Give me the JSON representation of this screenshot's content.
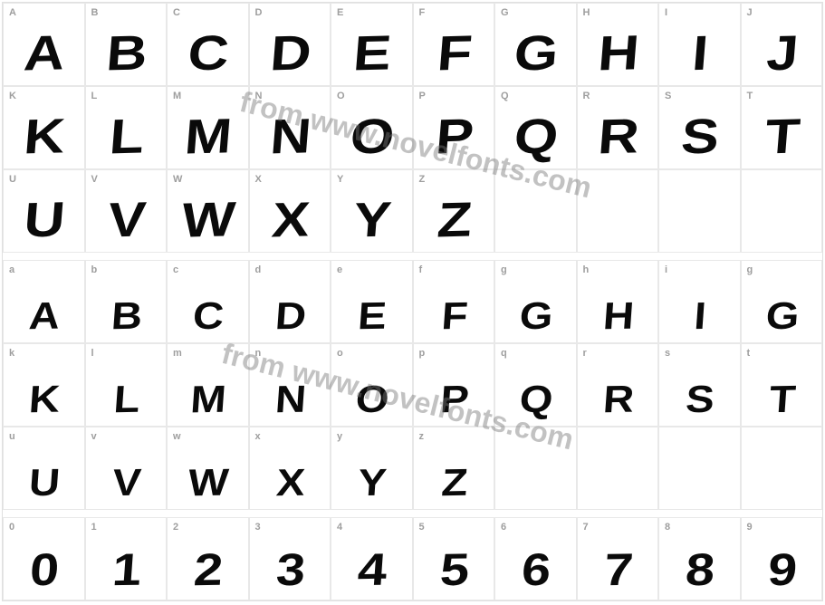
{
  "watermark_text": "from www.novelfonts.com",
  "watermark_color": "rgba(120,120,120,0.45)",
  "watermark_fontsize": 32,
  "border_color": "#e8e8e8",
  "label_color": "#9e9e9e",
  "label_fontsize": 11,
  "glyph_color": "#0a0a0a",
  "background_color": "#ffffff",
  "rows": [
    {
      "size": "big",
      "cells": [
        {
          "label": "A",
          "glyph": "A"
        },
        {
          "label": "B",
          "glyph": "B"
        },
        {
          "label": "C",
          "glyph": "C"
        },
        {
          "label": "D",
          "glyph": "D"
        },
        {
          "label": "E",
          "glyph": "E"
        },
        {
          "label": "F",
          "glyph": "F"
        },
        {
          "label": "G",
          "glyph": "G"
        },
        {
          "label": "H",
          "glyph": "H"
        },
        {
          "label": "I",
          "glyph": "I"
        },
        {
          "label": "J",
          "glyph": "J"
        }
      ]
    },
    {
      "size": "big",
      "cells": [
        {
          "label": "K",
          "glyph": "K"
        },
        {
          "label": "L",
          "glyph": "L"
        },
        {
          "label": "M",
          "glyph": "M"
        },
        {
          "label": "N",
          "glyph": "N"
        },
        {
          "label": "O",
          "glyph": "O"
        },
        {
          "label": "P",
          "glyph": "P"
        },
        {
          "label": "Q",
          "glyph": "Q"
        },
        {
          "label": "R",
          "glyph": "R"
        },
        {
          "label": "S",
          "glyph": "S"
        },
        {
          "label": "T",
          "glyph": "T"
        }
      ]
    },
    {
      "size": "big",
      "cells": [
        {
          "label": "U",
          "glyph": "U"
        },
        {
          "label": "V",
          "glyph": "V"
        },
        {
          "label": "W",
          "glyph": "W"
        },
        {
          "label": "X",
          "glyph": "X"
        },
        {
          "label": "Y",
          "glyph": "Y"
        },
        {
          "label": "Z",
          "glyph": "Z"
        },
        {
          "label": "",
          "glyph": ""
        },
        {
          "label": "",
          "glyph": ""
        },
        {
          "label": "",
          "glyph": ""
        },
        {
          "label": "",
          "glyph": ""
        }
      ]
    },
    {
      "gap": true
    },
    {
      "size": "med",
      "cells": [
        {
          "label": "a",
          "glyph": "A"
        },
        {
          "label": "b",
          "glyph": "B"
        },
        {
          "label": "c",
          "glyph": "C"
        },
        {
          "label": "d",
          "glyph": "D"
        },
        {
          "label": "e",
          "glyph": "E"
        },
        {
          "label": "f",
          "glyph": "F"
        },
        {
          "label": "g",
          "glyph": "G"
        },
        {
          "label": "h",
          "glyph": "H"
        },
        {
          "label": "i",
          "glyph": "I"
        },
        {
          "label": "g",
          "glyph": "G"
        }
      ]
    },
    {
      "size": "med",
      "cells": [
        {
          "label": "k",
          "glyph": "K"
        },
        {
          "label": "l",
          "glyph": "L"
        },
        {
          "label": "m",
          "glyph": "M"
        },
        {
          "label": "n",
          "glyph": "N"
        },
        {
          "label": "o",
          "glyph": "O"
        },
        {
          "label": "p",
          "glyph": "P"
        },
        {
          "label": "q",
          "glyph": "Q"
        },
        {
          "label": "r",
          "glyph": "R"
        },
        {
          "label": "s",
          "glyph": "S"
        },
        {
          "label": "t",
          "glyph": "T"
        }
      ]
    },
    {
      "size": "med",
      "cells": [
        {
          "label": "u",
          "glyph": "U"
        },
        {
          "label": "v",
          "glyph": "V"
        },
        {
          "label": "w",
          "glyph": "W"
        },
        {
          "label": "x",
          "glyph": "X"
        },
        {
          "label": "y",
          "glyph": "Y"
        },
        {
          "label": "z",
          "glyph": "Z"
        },
        {
          "label": "",
          "glyph": ""
        },
        {
          "label": "",
          "glyph": ""
        },
        {
          "label": "",
          "glyph": ""
        },
        {
          "label": "",
          "glyph": ""
        }
      ]
    },
    {
      "gap": true
    },
    {
      "size": "num",
      "cells": [
        {
          "label": "0",
          "glyph": "0"
        },
        {
          "label": "1",
          "glyph": "1"
        },
        {
          "label": "2",
          "glyph": "2"
        },
        {
          "label": "3",
          "glyph": "3"
        },
        {
          "label": "4",
          "glyph": "4"
        },
        {
          "label": "5",
          "glyph": "5"
        },
        {
          "label": "6",
          "glyph": "6"
        },
        {
          "label": "7",
          "glyph": "7"
        },
        {
          "label": "8",
          "glyph": "8"
        },
        {
          "label": "9",
          "glyph": "9"
        }
      ]
    }
  ]
}
